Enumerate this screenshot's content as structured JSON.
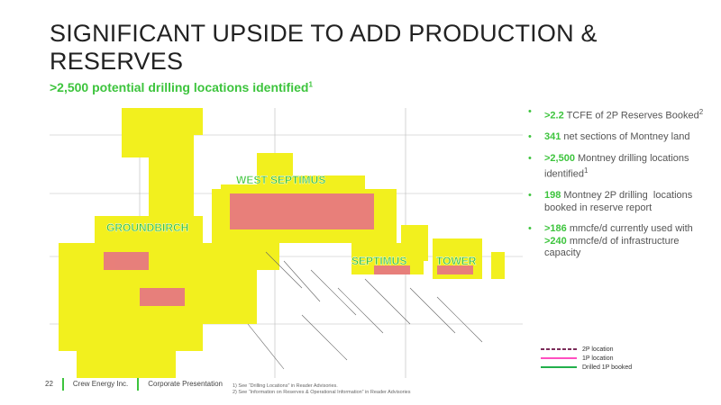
{
  "header": {
    "title": "SIGNIFICANT UPSIDE TO ADD PRODUCTION & RESERVES",
    "subtitle": {
      "text": ">2,500 potential drilling locations identified",
      "sup": "1"
    }
  },
  "map": {
    "labels": [
      "WEST SEPTIMUS",
      "GROUNDBIRCH",
      "SEPTIMUS",
      "TOWER"
    ],
    "legend": [
      {
        "name": "2P location",
        "color": "#7b2d5a",
        "dash": true
      },
      {
        "name": "1P location",
        "color": "#ff4fc0",
        "dash": false
      },
      {
        "name": "Drilled 1P booked",
        "color": "#22b04b",
        "dash": false
      }
    ]
  },
  "bullets": [
    [
      {
        "text": ">2.2",
        "color": "#3dc43d"
      },
      {
        "text": " TCFE of 2P Reserves Booked"
      },
      {
        "sup": "2"
      }
    ],
    [
      {
        "text": "341",
        "color": "#3dc43d"
      },
      {
        "text": " net sections of Montney land"
      }
    ],
    [
      {
        "text": ">2,500",
        "color": "#3dc43d"
      },
      {
        "text": " Montney drilling locations identified"
      },
      {
        "sup": "1"
      }
    ],
    [
      {
        "text": "198",
        "color": "#3dc43d"
      },
      {
        "text": " Montney 2P drilling  locations booked in reserve report"
      }
    ],
    [
      {
        "text": ">186",
        "color": "#3dc43d"
      },
      {
        "text": " mmcfe/d currently used with "
      },
      {
        "text": ">240",
        "color": "#3dc43d"
      },
      {
        "text": " mmcfe/d of infrastructure capacity"
      }
    ]
  ],
  "footnotes": [
    "1)  See “Drilling Locations” in Reader Advisories.",
    "2)  See “Information on Reserves & Operational Information” in Reader Advisories"
  ],
  "footer": {
    "page": "22",
    "company": "Crew Energy Inc.",
    "doc": "Corporate Presentation"
  }
}
